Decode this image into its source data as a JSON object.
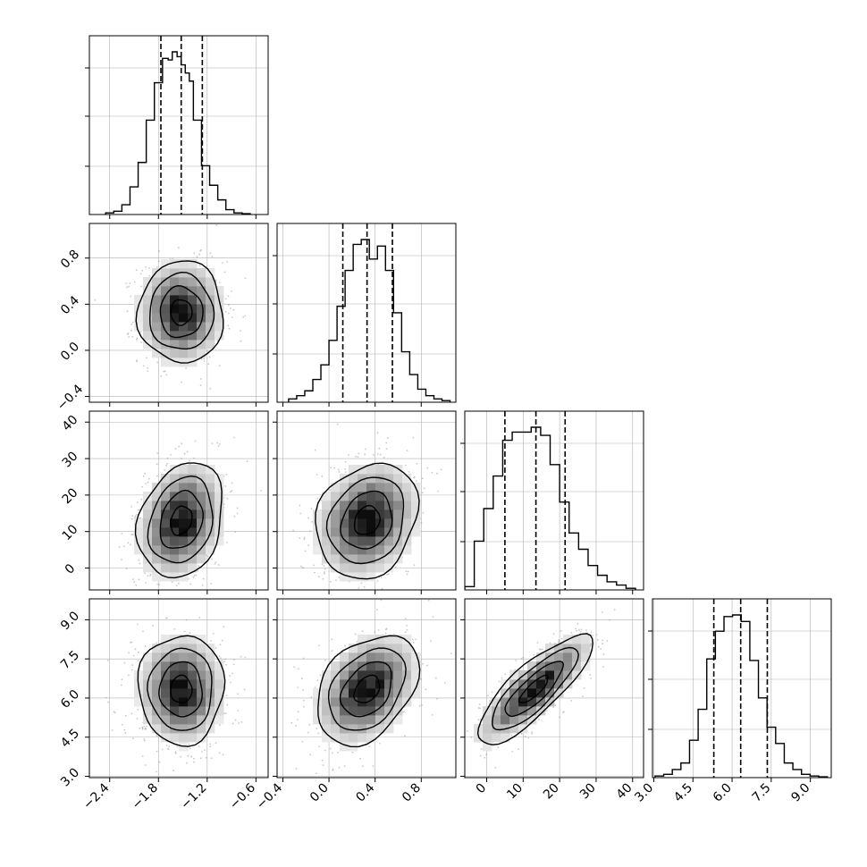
{
  "figure": {
    "type": "corner-plot",
    "panel_grid": "4x4 lower-triangle",
    "colors": {
      "axes": "#000000",
      "grid": "#b0b0b0",
      "samples": "#9a9a9a",
      "density_dark": "#000000",
      "density_light": "#ffffff"
    }
  },
  "chart_data": {
    "type": "corner",
    "parameters": [
      {
        "name": "",
        "range": [
          -2.65,
          -0.45
        ],
        "ticks": [
          -2.4,
          -1.8,
          -1.2,
          -0.6
        ],
        "tick_labels": [
          "−2.4",
          "−1.8",
          "−1.2",
          "−0.6"
        ],
        "quantiles": [
          -1.77,
          -1.52,
          -1.26
        ],
        "mean": -1.52,
        "sd": 0.25,
        "hist": {
          "edges": [
            -2.45,
            -2.35,
            -2.25,
            -2.15,
            -2.05,
            -1.95,
            -1.85,
            -1.75,
            -1.68,
            -1.63,
            -1.57,
            -1.52,
            -1.47,
            -1.42,
            -1.37,
            -1.27,
            -1.17,
            -1.07,
            -0.97,
            -0.87,
            -0.77,
            -0.67
          ],
          "counts": [
            0.01,
            0.02,
            0.06,
            0.17,
            0.32,
            0.58,
            0.81,
            0.96,
            0.95,
            1.0,
            0.97,
            0.92,
            0.87,
            0.82,
            0.58,
            0.3,
            0.18,
            0.09,
            0.03,
            0.01,
            0.005
          ]
        }
      },
      {
        "name": "",
        "range": [
          -0.45,
          1.1
        ],
        "ticks": [
          -0.4,
          0.0,
          0.4,
          0.8
        ],
        "tick_labels": [
          "−0.4",
          "0.0",
          "0.4",
          "0.8"
        ],
        "quantiles": [
          0.12,
          0.33,
          0.55
        ],
        "mean": 0.33,
        "sd": 0.21,
        "hist": {
          "edges": [
            -0.35,
            -0.28,
            -0.21,
            -0.14,
            -0.07,
            0.0,
            0.07,
            0.14,
            0.21,
            0.28,
            0.35,
            0.42,
            0.49,
            0.56,
            0.63,
            0.7,
            0.77,
            0.84,
            0.91,
            0.98,
            1.05
          ],
          "counts": [
            0.02,
            0.04,
            0.07,
            0.14,
            0.23,
            0.38,
            0.59,
            0.81,
            0.97,
            1.0,
            0.88,
            0.96,
            0.81,
            0.55,
            0.31,
            0.17,
            0.08,
            0.04,
            0.02,
            0.01
          ]
        }
      },
      {
        "name": "",
        "range": [
          -6.0,
          43.0
        ],
        "ticks": [
          0,
          10,
          20,
          30,
          40
        ],
        "tick_labels": [
          "0",
          "10",
          "20",
          "30",
          "40"
        ],
        "quantiles": [
          5.0,
          13.5,
          21.5
        ],
        "mean": 13.0,
        "sd": 7.5,
        "hist": {
          "edges": [
            -6.0,
            -3.4,
            -0.8,
            1.8,
            4.4,
            7.0,
            9.6,
            12.2,
            14.8,
            17.4,
            20.0,
            22.6,
            25.2,
            27.8,
            30.4,
            33.0,
            35.6,
            38.2,
            40.8
          ],
          "counts": [
            0.02,
            0.3,
            0.5,
            0.7,
            0.92,
            0.97,
            0.97,
            1.0,
            0.95,
            0.77,
            0.54,
            0.35,
            0.25,
            0.15,
            0.09,
            0.05,
            0.03,
            0.01
          ]
        }
      },
      {
        "name": "",
        "range": [
          2.95,
          9.8
        ],
        "ticks": [
          3.0,
          4.5,
          6.0,
          7.5,
          9.0
        ],
        "tick_labels": [
          "3.0",
          "4.5",
          "6.0",
          "7.5",
          "9.0"
        ],
        "quantiles": [
          5.3,
          6.33,
          7.35
        ],
        "mean": 6.33,
        "sd": 1.0,
        "hist": {
          "edges": [
            3.05,
            3.38,
            3.71,
            4.04,
            4.37,
            4.7,
            5.03,
            5.36,
            5.69,
            6.02,
            6.35,
            6.68,
            7.01,
            7.34,
            7.67,
            8.0,
            8.33,
            8.66,
            8.99,
            9.32,
            9.65
          ],
          "counts": [
            0.01,
            0.02,
            0.05,
            0.09,
            0.23,
            0.42,
            0.73,
            0.9,
            0.99,
            1.0,
            0.96,
            0.72,
            0.49,
            0.31,
            0.21,
            0.09,
            0.05,
            0.02,
            0.01,
            0.005
          ]
        }
      }
    ],
    "correlations": {
      "1-0": 0.0,
      "2-0": 0.22,
      "2-1": 0.18,
      "3-0": 0.0,
      "3-1": 0.35,
      "3-2": 0.82
    },
    "contour_levels_sigma": [
      0.5,
      1.0,
      1.5,
      2.0
    ]
  }
}
